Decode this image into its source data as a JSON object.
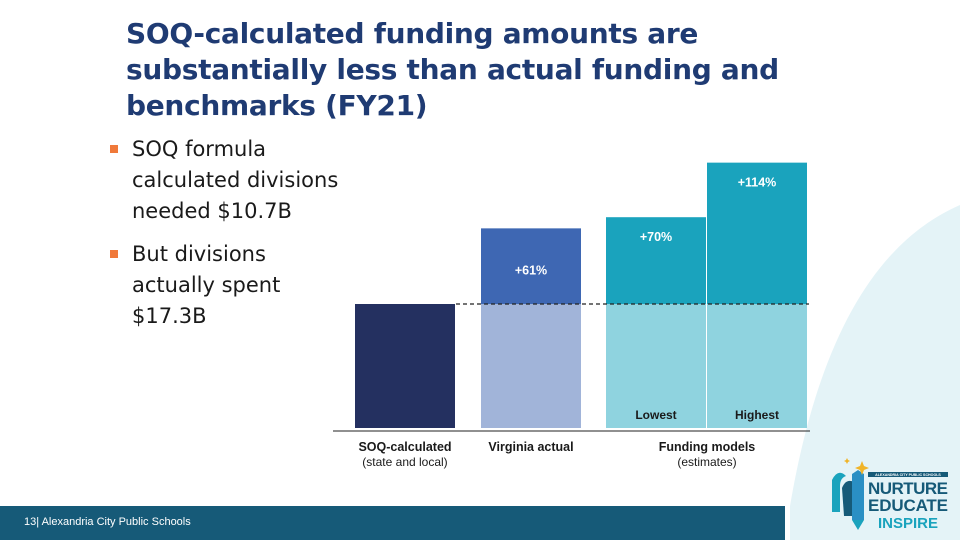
{
  "slide": {
    "title": "SOQ-calculated funding amounts are substantially less than actual funding and benchmarks (FY21)",
    "bullets": [
      "SOQ formula calculated divisions needed $10.7B",
      "But divisions actually spent $17.3B"
    ],
    "footer": {
      "page_number": "13",
      "separator": "|",
      "org": "Alexandria City Public Schools"
    },
    "logo": {
      "text_small": "ALEXANDRIA CITY PUBLIC SCHOOLS",
      "line1": "NURTURE",
      "line2": "EDUCATE",
      "line3": "INSPIRE"
    }
  },
  "colors": {
    "title": "#1f3b73",
    "bullet_marker": "#f0793a",
    "soq_bar": "#243060",
    "virginia_base": "#a1b4d9",
    "virginia_increase": "#3e67b3",
    "model_base": "#8fd3df",
    "model_increase": "#1aa3bd",
    "footer": "#165a78",
    "background_arc": "#e4f3f7"
  },
  "chart_data": {
    "type": "bar",
    "stacked": true,
    "baseline_value": 100,
    "bars": [
      {
        "label": "SOQ-calculated",
        "sublabel": "(state and local)",
        "group": "SOQ-calculated",
        "base": 100,
        "increase": 0,
        "increase_label": "",
        "inner_label": ""
      },
      {
        "label": "Virginia actual",
        "sublabel": "",
        "group": "Virginia actual",
        "base": 100,
        "increase": 61,
        "increase_label": "+61%",
        "inner_label": ""
      },
      {
        "label": "Lowest",
        "sublabel": "",
        "group": "Funding models",
        "base": 100,
        "increase": 70,
        "increase_label": "+70%",
        "inner_label": "Lowest"
      },
      {
        "label": "Highest",
        "sublabel": "",
        "group": "Funding models",
        "base": 100,
        "increase": 114,
        "increase_label": "+114%",
        "inner_label": "Highest"
      }
    ],
    "groups": [
      {
        "label": "SOQ-calculated",
        "sublabel": "(state and local)"
      },
      {
        "label": "Virginia actual",
        "sublabel": ""
      },
      {
        "label": "Funding models",
        "sublabel": "(estimates)"
      }
    ],
    "reference_line": "dashed at SOQ-calculated level",
    "grid": false,
    "legend": "none"
  }
}
